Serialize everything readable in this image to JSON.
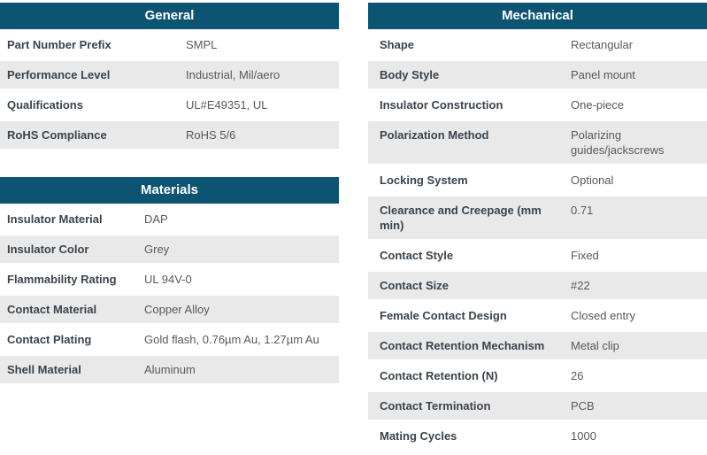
{
  "colors": {
    "header_bg": "#0d5472",
    "header_text": "#ffffff",
    "stripe_bg": "#e9e9e9",
    "label_text": "#39444e",
    "value_text": "#595959",
    "page_bg": "#ffffff"
  },
  "tables": {
    "general": {
      "title": "General",
      "rows": [
        {
          "label": "Part Number Prefix",
          "value": "SMPL"
        },
        {
          "label": "Performance Level",
          "value": "Industrial, Mil/aero"
        },
        {
          "label": "Qualifications",
          "value": "UL#E49351, UL"
        },
        {
          "label": "RoHS Compliance",
          "value": "RoHS 5/6"
        }
      ]
    },
    "materials": {
      "title": "Materials",
      "rows": [
        {
          "label": "Insulator Material",
          "value": "DAP"
        },
        {
          "label": "Insulator Color",
          "value": "Grey"
        },
        {
          "label": "Flammability Rating",
          "value": "UL 94V-0"
        },
        {
          "label": "Contact Material",
          "value": "Copper Alloy"
        },
        {
          "label": "Contact Plating",
          "value": "Gold flash, 0.76µm Au, 1.27µm Au"
        },
        {
          "label": "Shell Material",
          "value": "Aluminum"
        }
      ]
    },
    "mechanical": {
      "title": "Mechanical",
      "rows": [
        {
          "label": "Shape",
          "value": "Rectangular"
        },
        {
          "label": "Body Style",
          "value": "Panel mount"
        },
        {
          "label": "Insulator Construction",
          "value": "One-piece"
        },
        {
          "label": "Polarization Method",
          "value": "Polarizing guides/jackscrews"
        },
        {
          "label": "Locking System",
          "value": "Optional"
        },
        {
          "label": "Clearance and Creepage (mm min)",
          "value": "0.71"
        },
        {
          "label": "Contact Style",
          "value": "Fixed"
        },
        {
          "label": "Contact Size",
          "value": "#22"
        },
        {
          "label": "Female Contact Design",
          "value": "Closed entry"
        },
        {
          "label": "Contact Retention Mechanism",
          "value": "Metal clip"
        },
        {
          "label": "Contact Retention (N)",
          "value": "26"
        },
        {
          "label": "Contact Termination",
          "value": "PCB"
        },
        {
          "label": "Mating Cycles",
          "value": "1000"
        }
      ]
    }
  }
}
